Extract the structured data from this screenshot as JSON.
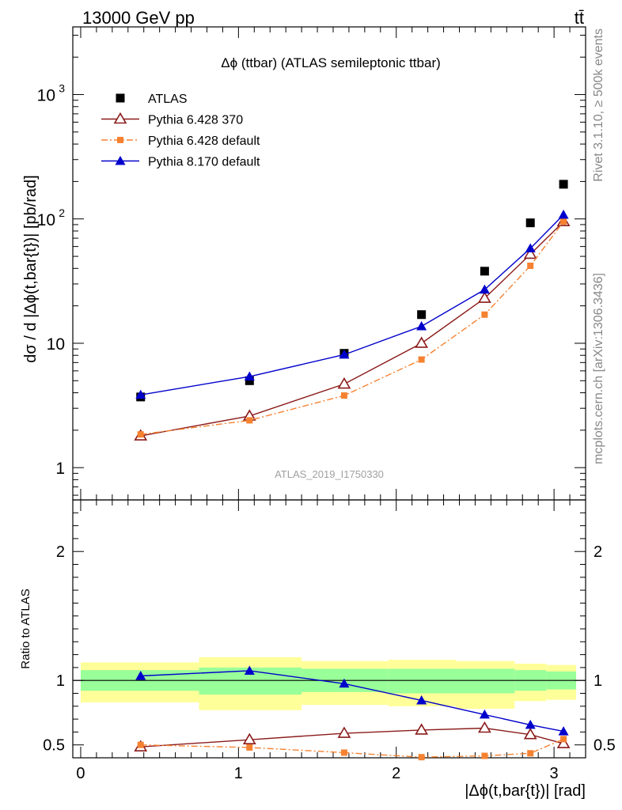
{
  "header": {
    "left": "13000 GeV pp",
    "right": "tt̄"
  },
  "side_labels": {
    "rivet": "Rivet 3.1.10, ≥ 500k events",
    "mcplots": "mcplots.cern.ch [arXiv:1306.3436]"
  },
  "chart_data": [
    {
      "type": "line",
      "title": "Δϕ (ttbar) (ATLAS semileptonic ttbar)",
      "watermark": "ATLAS_2019_I1750330",
      "ylabel": "dσ / d |Δϕ(t,bar{t})| [pb/rad]",
      "yscale": "log",
      "xlim": [
        -0.05,
        3.2
      ],
      "ylim": [
        0.55,
        3500
      ],
      "ytick_labels": [
        "1",
        "10",
        "10",
        "10"
      ],
      "ytick_exponents": [
        "",
        "",
        "2",
        "3"
      ],
      "legend_position": "top-left",
      "x": [
        0.38,
        1.07,
        1.67,
        2.16,
        2.56,
        2.85,
        3.06
      ],
      "series": [
        {
          "name": "ATLAS",
          "style": "data",
          "color": "#000000",
          "values": [
            3.7,
            5.0,
            8.3,
            17.0,
            38.0,
            93.0,
            190.0
          ]
        },
        {
          "name": "Pythia 6.428 370",
          "style": "open-triangle-solid",
          "color": "#8b1a1a",
          "values": [
            1.8,
            2.6,
            4.7,
            10.0,
            23.0,
            52.0,
            95.0
          ]
        },
        {
          "name": "Pythia 6.428 default",
          "style": "square-dashdot",
          "color": "#f58231",
          "values": [
            1.85,
            2.4,
            3.8,
            7.4,
            17.0,
            42.0,
            95.0
          ]
        },
        {
          "name": "Pythia 8.170 default",
          "style": "filled-triangle-solid",
          "color": "#0000cc",
          "values": [
            3.85,
            5.4,
            8.1,
            13.7,
            27.0,
            58.0,
            108.0
          ]
        }
      ]
    },
    {
      "type": "line",
      "ylabel": "Ratio to ATLAS",
      "xlabel": "|Δϕ(t,bar{t})| [rad]",
      "xlim": [
        -0.05,
        3.2
      ],
      "ylim": [
        0.4,
        2.4
      ],
      "xticks": [
        0,
        1,
        2,
        3
      ],
      "xtick_labels": [
        "0",
        "1",
        "2",
        "3"
      ],
      "yticks": [
        0.5,
        1,
        2
      ],
      "ytick_labels": [
        "0.5",
        "1",
        "2"
      ],
      "x": [
        0.38,
        1.07,
        1.67,
        2.16,
        2.56,
        2.85,
        3.06
      ],
      "uncertainty_bands": {
        "edges": [
          0,
          0.75,
          1.4,
          1.95,
          2.38,
          2.75,
          2.95,
          3.14
        ],
        "inner": [
          [
            0.92,
            1.08
          ],
          [
            0.89,
            1.1
          ],
          [
            0.91,
            1.09
          ],
          [
            0.9,
            1.09
          ],
          [
            0.9,
            1.09
          ],
          [
            0.92,
            1.08
          ],
          [
            0.93,
            1.07
          ]
        ],
        "outer": [
          [
            0.83,
            1.14
          ],
          [
            0.77,
            1.18
          ],
          [
            0.81,
            1.15
          ],
          [
            0.8,
            1.16
          ],
          [
            0.78,
            1.15
          ],
          [
            0.84,
            1.13
          ],
          [
            0.85,
            1.12
          ]
        ],
        "inner_color": "#99ff99",
        "outer_color": "#ffff99"
      },
      "series": [
        {
          "name": "Pythia 6.428 370",
          "style": "open-triangle-solid",
          "color": "#8b1a1a",
          "values": [
            0.485,
            0.54,
            0.59,
            0.615,
            0.63,
            0.58,
            0.51
          ]
        },
        {
          "name": "Pythia 6.428 default",
          "style": "square-dashdot",
          "color": "#f58231",
          "values": [
            0.5,
            0.48,
            0.44,
            0.405,
            0.415,
            0.435,
            0.545
          ]
        },
        {
          "name": "Pythia 8.170 default",
          "style": "filled-triangle-solid",
          "color": "#0000cc",
          "values": [
            1.035,
            1.075,
            0.975,
            0.845,
            0.735,
            0.655,
            0.605
          ]
        }
      ]
    }
  ]
}
